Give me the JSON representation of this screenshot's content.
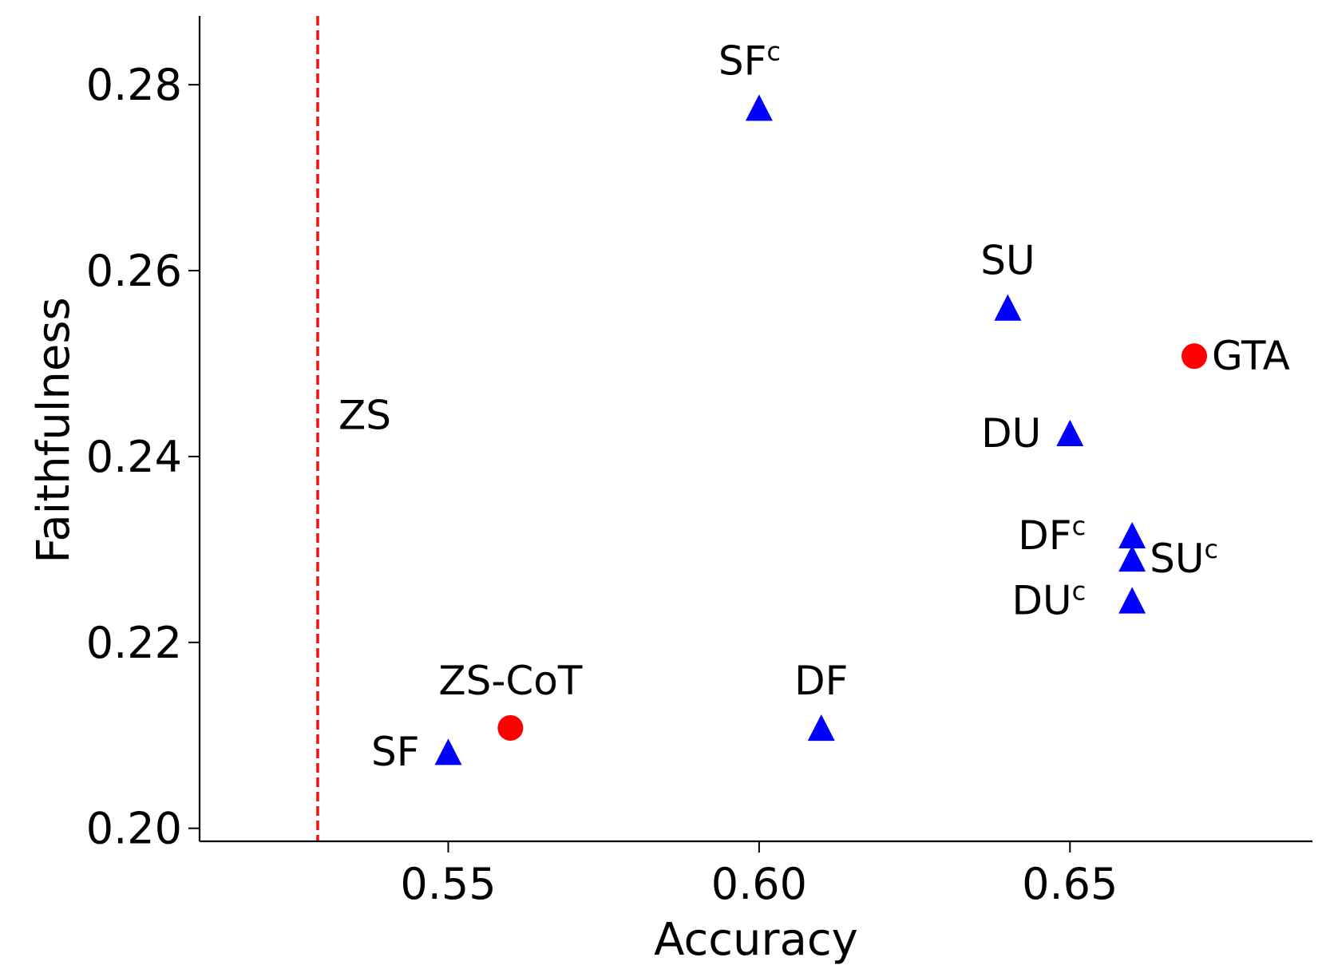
{
  "chart_data": {
    "type": "scatter",
    "title": "",
    "xlabel": "Accuracy",
    "ylabel": "Faithfulness",
    "xlim": [
      0.51,
      0.689
    ],
    "ylim": [
      0.1986,
      0.2874
    ],
    "xticks": [
      {
        "value": 0.55,
        "label": "0.55"
      },
      {
        "value": 0.6,
        "label": "0.60"
      },
      {
        "value": 0.65,
        "label": "0.65"
      }
    ],
    "yticks": [
      {
        "value": 0.2,
        "label": "0.20"
      },
      {
        "value": 0.22,
        "label": "0.22"
      },
      {
        "value": 0.24,
        "label": "0.24"
      },
      {
        "value": 0.26,
        "label": "0.26"
      },
      {
        "value": 0.28,
        "label": "0.28"
      }
    ],
    "reference_lines": [
      {
        "name": "ZS",
        "axis": "x",
        "value": 0.529,
        "color": "#ee1111",
        "style": "dashed",
        "label": "ZS",
        "label_y": 0.2445
      }
    ],
    "colors": {
      "triangle": "#0000ff",
      "circle": "#ff0000"
    },
    "points": [
      {
        "name": "SF",
        "label": "SF",
        "sup": "",
        "x": 0.55,
        "y": 0.2082,
        "marker": "triangle",
        "label_pos": "left"
      },
      {
        "name": "ZS-CoT",
        "label": "ZS-CoT",
        "sup": "",
        "x": 0.56,
        "y": 0.2108,
        "marker": "circle",
        "label_pos": "above"
      },
      {
        "name": "SFc",
        "label": "SF",
        "sup": "c",
        "x": 0.6,
        "y": 0.2775,
        "marker": "triangle",
        "label_pos": "above"
      },
      {
        "name": "DF",
        "label": "DF",
        "sup": "",
        "x": 0.61,
        "y": 0.2108,
        "marker": "triangle",
        "label_pos": "above"
      },
      {
        "name": "SU",
        "label": "SU",
        "sup": "",
        "x": 0.64,
        "y": 0.256,
        "marker": "triangle",
        "label_pos": "above"
      },
      {
        "name": "DU",
        "label": "DU",
        "sup": "",
        "x": 0.65,
        "y": 0.2425,
        "marker": "triangle",
        "label_pos": "left"
      },
      {
        "name": "DFc",
        "label": "DF",
        "sup": "c",
        "x": 0.66,
        "y": 0.2315,
        "marker": "triangle",
        "label_pos": "left"
      },
      {
        "name": "SUc",
        "label": "SU",
        "sup": "c",
        "x": 0.66,
        "y": 0.229,
        "marker": "triangle",
        "label_pos": "right"
      },
      {
        "name": "DUc",
        "label": "DU",
        "sup": "c",
        "x": 0.66,
        "y": 0.2245,
        "marker": "triangle",
        "label_pos": "left"
      },
      {
        "name": "GTA",
        "label": "GTA",
        "sup": "",
        "x": 0.67,
        "y": 0.2508,
        "marker": "circle",
        "label_pos": "right"
      }
    ]
  }
}
